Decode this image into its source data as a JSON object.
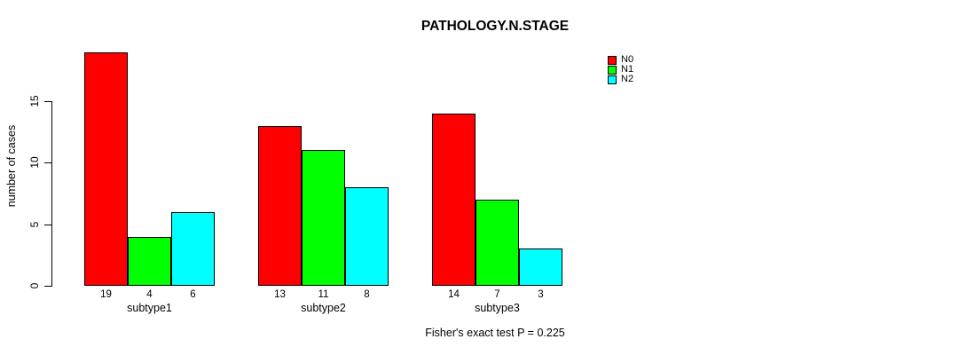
{
  "chart_data": {
    "type": "bar",
    "title": "PATHOLOGY.N.STAGE",
    "xlabel": "",
    "ylabel": "number of cases",
    "categories": [
      "subtype1",
      "subtype2",
      "subtype3"
    ],
    "series": [
      {
        "name": "N0",
        "color": "#FF0000",
        "values": [
          19,
          13,
          14
        ]
      },
      {
        "name": "N1",
        "color": "#00FF00",
        "values": [
          4,
          11,
          7
        ]
      },
      {
        "name": "N2",
        "color": "#00FFFF",
        "values": [
          6,
          8,
          3
        ]
      }
    ],
    "y_ticks": [
      0,
      5,
      10,
      15
    ],
    "ylim": [
      0,
      19
    ],
    "grid": false,
    "legend_position": "top-right-outside",
    "bar_value_labels": true,
    "annotation": "Fisher's exact test P = 0.225"
  },
  "colors": {
    "background": "#FFFFFF",
    "text": "#000000",
    "bar_border": "#000000"
  }
}
